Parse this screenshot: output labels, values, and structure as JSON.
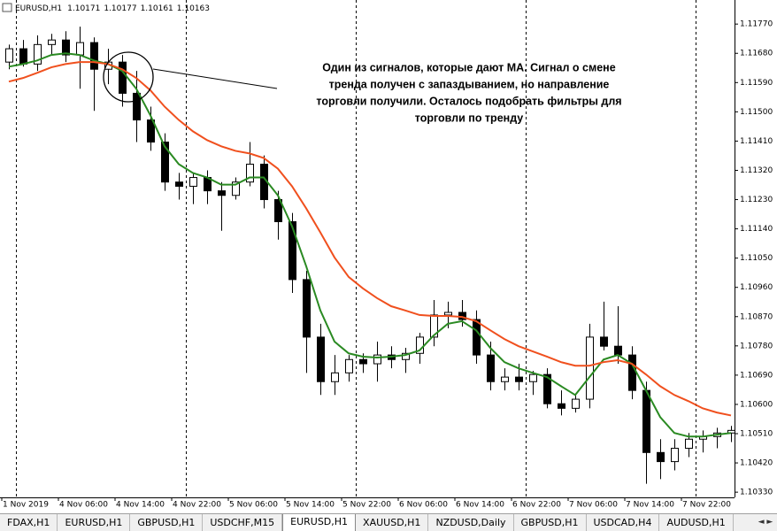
{
  "chart_data": {
    "type": "candlestick",
    "title": "EURUSD,H1",
    "header_values": [
      1.10171,
      1.10177,
      1.10161,
      1.10163
    ],
    "annotation": [
      "Один из сигналов, которые дают МА. Сигнал о смене",
      "тренда получен с запаздыванием, но направление",
      "торговли получили. Осталось подобрать фильтры для",
      "торговли по тренду"
    ],
    "categories": [
      "1 Nov 2019",
      null,
      null,
      null,
      "4 Nov 06:00",
      null,
      null,
      null,
      "4 Nov 14:00",
      null,
      null,
      null,
      "4 Nov 22:00",
      null,
      null,
      null,
      "5 Nov 06:00",
      null,
      null,
      null,
      "5 Nov 14:00",
      null,
      null,
      null,
      "5 Nov 22:00",
      null,
      null,
      null,
      "6 Nov 06:00",
      null,
      null,
      null,
      "6 Nov 14:00",
      null,
      null,
      null,
      "6 Nov 22:00",
      null,
      null,
      null,
      "7 Nov 06:00",
      null,
      null,
      null,
      "7 Nov 14:00",
      null,
      null,
      null,
      "7 Nov 22:00",
      null,
      null,
      null
    ],
    "open": [
      1.11653,
      1.11694,
      1.11647,
      1.11707,
      1.11721,
      1.11675,
      1.11713,
      1.11631,
      1.11653,
      1.11557,
      1.11475,
      1.11407,
      1.11284,
      1.11271,
      1.11298,
      1.11257,
      1.11243,
      1.11284,
      1.11339,
      1.1123,
      1.11162,
      1.10984,
      1.10807,
      1.1067,
      1.10697,
      1.10738,
      1.10725,
      1.10752,
      1.10738,
      1.10757,
      1.10807,
      1.10875,
      1.10883,
      1.10861,
      1.10752,
      1.1067,
      1.10684,
      1.1067,
      1.10692,
      1.10602,
      1.10588,
      1.10616,
      1.10807,
      1.10779,
      1.10752,
      1.10643,
      1.10452,
      1.10424,
      1.10465,
      1.10493,
      1.10501,
      1.10512
    ],
    "high": [
      1.11707,
      1.11721,
      1.11735,
      1.1174,
      1.11748,
      1.11762,
      1.11729,
      1.11694,
      1.11675,
      1.11626,
      1.11516,
      1.11434,
      1.11312,
      1.11312,
      1.1132,
      1.11284,
      1.11298,
      1.11407,
      1.11366,
      1.11257,
      1.11189,
      1.11011,
      1.10848,
      1.10752,
      1.10752,
      1.10757,
      1.10793,
      1.10779,
      1.10774,
      1.1082,
      1.10921,
      1.10916,
      1.10921,
      1.10889,
      1.10793,
      1.10711,
      1.10725,
      1.10703,
      1.10711,
      1.10643,
      1.10629,
      1.10848,
      1.10916,
      1.10902,
      1.10779,
      1.1067,
      1.10493,
      1.10493,
      1.10512,
      1.1052,
      1.10528,
      1.10534
    ],
    "low": [
      1.11631,
      1.11639,
      1.11626,
      1.11675,
      1.11653,
      1.11571,
      1.11503,
      1.11585,
      1.11516,
      1.11407,
      1.1138,
      1.11257,
      1.1123,
      1.11216,
      1.11216,
      1.11134,
      1.1123,
      1.11271,
      1.11203,
      1.11107,
      1.10943,
      1.10697,
      1.10629,
      1.10629,
      1.1067,
      1.10697,
      1.1067,
      1.10711,
      1.10697,
      1.10725,
      1.10779,
      1.10834,
      1.10839,
      1.10725,
      1.10643,
      1.10643,
      1.10643,
      1.10629,
      1.10588,
      1.10566,
      1.10575,
      1.10588,
      1.10766,
      1.10725,
      1.10616,
      1.10356,
      1.1037,
      1.10397,
      1.10438,
      1.10452,
      1.10465,
      1.10484
    ],
    "close": [
      1.11694,
      1.11647,
      1.11707,
      1.11721,
      1.11675,
      1.11713,
      1.11631,
      1.11653,
      1.11557,
      1.11475,
      1.11407,
      1.11284,
      1.11271,
      1.11298,
      1.11257,
      1.11243,
      1.11284,
      1.11339,
      1.1123,
      1.11162,
      1.10984,
      1.10807,
      1.1067,
      1.10697,
      1.10738,
      1.10725,
      1.10752,
      1.10738,
      1.10757,
      1.10807,
      1.10875,
      1.10883,
      1.10861,
      1.10752,
      1.1067,
      1.10684,
      1.1067,
      1.10692,
      1.10602,
      1.10588,
      1.10616,
      1.10807,
      1.10779,
      1.10752,
      1.10643,
      1.10452,
      1.10424,
      1.10465,
      1.10493,
      1.10501,
      1.10512,
      1.1052
    ],
    "up_color": "#ffffff",
    "down_color": "#000000",
    "moving_averages": [
      {
        "color": "#2a8a22",
        "values": [
          1.11639,
          1.11647,
          1.11658,
          1.11675,
          1.1168,
          1.11675,
          1.11658,
          1.11647,
          1.11626,
          1.11571,
          1.11489,
          1.11394,
          1.11339,
          1.11312,
          1.11298,
          1.11276,
          1.11276,
          1.11298,
          1.11298,
          1.11243,
          1.11148,
          1.11025,
          1.10889,
          1.10793,
          1.10757,
          1.10747,
          1.10744,
          1.10747,
          1.10752,
          1.10766,
          1.10812,
          1.10848,
          1.10856,
          1.10828,
          1.10774,
          1.1073,
          1.10711,
          1.10697,
          1.10684,
          1.10656,
          1.10629,
          1.10684,
          1.10738,
          1.10752,
          1.10725,
          1.10643,
          1.10561,
          1.10512,
          1.10501,
          1.10501,
          1.10507,
          1.10512
        ]
      },
      {
        "color": "#f0501e",
        "values": [
          1.11593,
          1.11604,
          1.1162,
          1.11637,
          1.11647,
          1.11653,
          1.11653,
          1.11647,
          1.11631,
          1.11604,
          1.11566,
          1.11516,
          1.11475,
          1.1144,
          1.11413,
          1.11394,
          1.1138,
          1.11372,
          1.11358,
          1.11325,
          1.11271,
          1.11203,
          1.11129,
          1.11052,
          1.10992,
          1.10957,
          1.10927,
          1.10902,
          1.10889,
          1.10875,
          1.10872,
          1.10872,
          1.10869,
          1.10856,
          1.10828,
          1.10801,
          1.10779,
          1.10763,
          1.10747,
          1.1073,
          1.10719,
          1.10719,
          1.1073,
          1.10736,
          1.10725,
          1.10692,
          1.10656,
          1.10629,
          1.1061,
          1.10588,
          1.10575,
          1.10566
        ]
      }
    ],
    "ylim": [
      1.10314,
      1.11844
    ],
    "yticks": [
      {
        "value": 1.1177,
        "label": "1.11770"
      },
      {
        "value": 1.1168,
        "label": "1.11680"
      },
      {
        "value": 1.1159,
        "label": "1.11590"
      },
      {
        "value": 1.115,
        "label": "1.11500"
      },
      {
        "value": 1.1141,
        "label": "1.11410"
      },
      {
        "value": 1.1132,
        "label": "1.11320"
      },
      {
        "value": 1.1123,
        "label": "1.11230"
      },
      {
        "value": 1.1114,
        "label": "1.11140"
      },
      {
        "value": 1.1105,
        "label": "1.11050"
      },
      {
        "value": 1.1096,
        "label": "1.10960"
      },
      {
        "value": 1.1087,
        "label": "1.10870"
      },
      {
        "value": 1.1078,
        "label": "1.10780"
      },
      {
        "value": 1.1069,
        "label": "1.10690"
      },
      {
        "value": 1.106,
        "label": "1.10600"
      },
      {
        "value": 1.1051,
        "label": "1.10510"
      },
      {
        "value": 1.1042,
        "label": "1.10420"
      },
      {
        "value": 1.1033,
        "label": "1.10330"
      }
    ],
    "grid": false
  },
  "tabs": [
    "FDAX,H1",
    "EURUSD,H1",
    "GBPUSD,H1",
    "USDCHF,M15",
    "EURUSD,H1",
    "XAUUSD,H1",
    "NZDUSD,Daily",
    "GBPUSD,H1",
    "USDCAD,H4",
    "AUDUSD,H1"
  ],
  "active_tab": 4
}
